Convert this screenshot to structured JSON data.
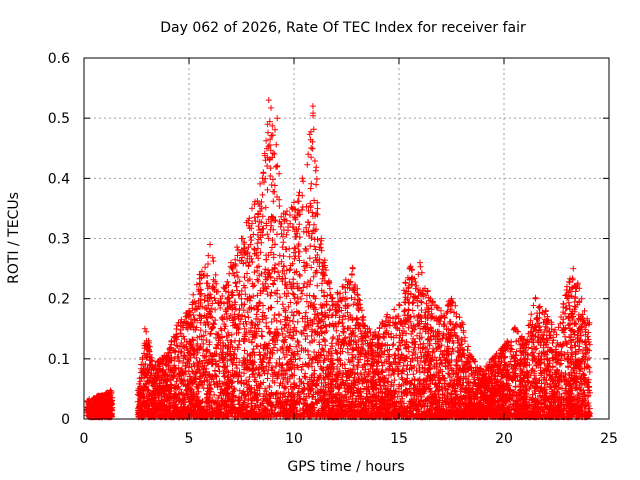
{
  "chart_data": {
    "type": "scatter",
    "title": "Day 062 of 2026, Rate Of TEC Index for receiver fair",
    "xlabel": "GPS time / hours",
    "ylabel": "ROTI / TECUs",
    "xlim": [
      0,
      25
    ],
    "ylim": [
      0,
      0.6
    ],
    "grid": true,
    "marker": "plus",
    "series_color": "#ff0000",
    "x_ticks": [
      "0",
      "5",
      "10",
      "15",
      "20",
      "25"
    ],
    "y_ticks": [
      "0",
      "0.1",
      "0.2",
      "0.3",
      "0.4",
      "0.5",
      "0.6"
    ],
    "envelope": [
      {
        "x": 0.2,
        "y": 0.03
      },
      {
        "x": 0.6,
        "y": 0.035
      },
      {
        "x": 1.0,
        "y": 0.04
      },
      {
        "x": 1.3,
        "y": 0.045
      },
      {
        "x": 2.6,
        "y": 0.05
      },
      {
        "x": 2.9,
        "y": 0.15
      },
      {
        "x": 3.4,
        "y": 0.09
      },
      {
        "x": 4.0,
        "y": 0.11
      },
      {
        "x": 4.5,
        "y": 0.16
      },
      {
        "x": 5.0,
        "y": 0.18
      },
      {
        "x": 5.5,
        "y": 0.24
      },
      {
        "x": 6.0,
        "y": 0.29
      },
      {
        "x": 6.5,
        "y": 0.2
      },
      {
        "x": 7.0,
        "y": 0.26
      },
      {
        "x": 7.5,
        "y": 0.3
      },
      {
        "x": 8.0,
        "y": 0.35
      },
      {
        "x": 8.5,
        "y": 0.4
      },
      {
        "x": 8.8,
        "y": 0.53
      },
      {
        "x": 9.2,
        "y": 0.5
      },
      {
        "x": 9.6,
        "y": 0.34
      },
      {
        "x": 10.0,
        "y": 0.36
      },
      {
        "x": 10.4,
        "y": 0.4
      },
      {
        "x": 10.9,
        "y": 0.52
      },
      {
        "x": 11.3,
        "y": 0.3
      },
      {
        "x": 11.8,
        "y": 0.2
      },
      {
        "x": 12.3,
        "y": 0.22
      },
      {
        "x": 12.8,
        "y": 0.25
      },
      {
        "x": 13.3,
        "y": 0.17
      },
      {
        "x": 13.8,
        "y": 0.14
      },
      {
        "x": 14.4,
        "y": 0.17
      },
      {
        "x": 15.0,
        "y": 0.19
      },
      {
        "x": 15.5,
        "y": 0.25
      },
      {
        "x": 16.0,
        "y": 0.26
      },
      {
        "x": 16.5,
        "y": 0.2
      },
      {
        "x": 17.0,
        "y": 0.18
      },
      {
        "x": 17.5,
        "y": 0.2
      },
      {
        "x": 18.0,
        "y": 0.16
      },
      {
        "x": 18.5,
        "y": 0.1
      },
      {
        "x": 19.0,
        "y": 0.08
      },
      {
        "x": 19.5,
        "y": 0.1
      },
      {
        "x": 20.0,
        "y": 0.12
      },
      {
        "x": 20.5,
        "y": 0.15
      },
      {
        "x": 21.0,
        "y": 0.13
      },
      {
        "x": 21.5,
        "y": 0.2
      },
      {
        "x": 22.0,
        "y": 0.18
      },
      {
        "x": 22.5,
        "y": 0.14
      },
      {
        "x": 23.0,
        "y": 0.22
      },
      {
        "x": 23.3,
        "y": 0.25
      },
      {
        "x": 23.7,
        "y": 0.2
      },
      {
        "x": 24.0,
        "y": 0.16
      }
    ]
  }
}
